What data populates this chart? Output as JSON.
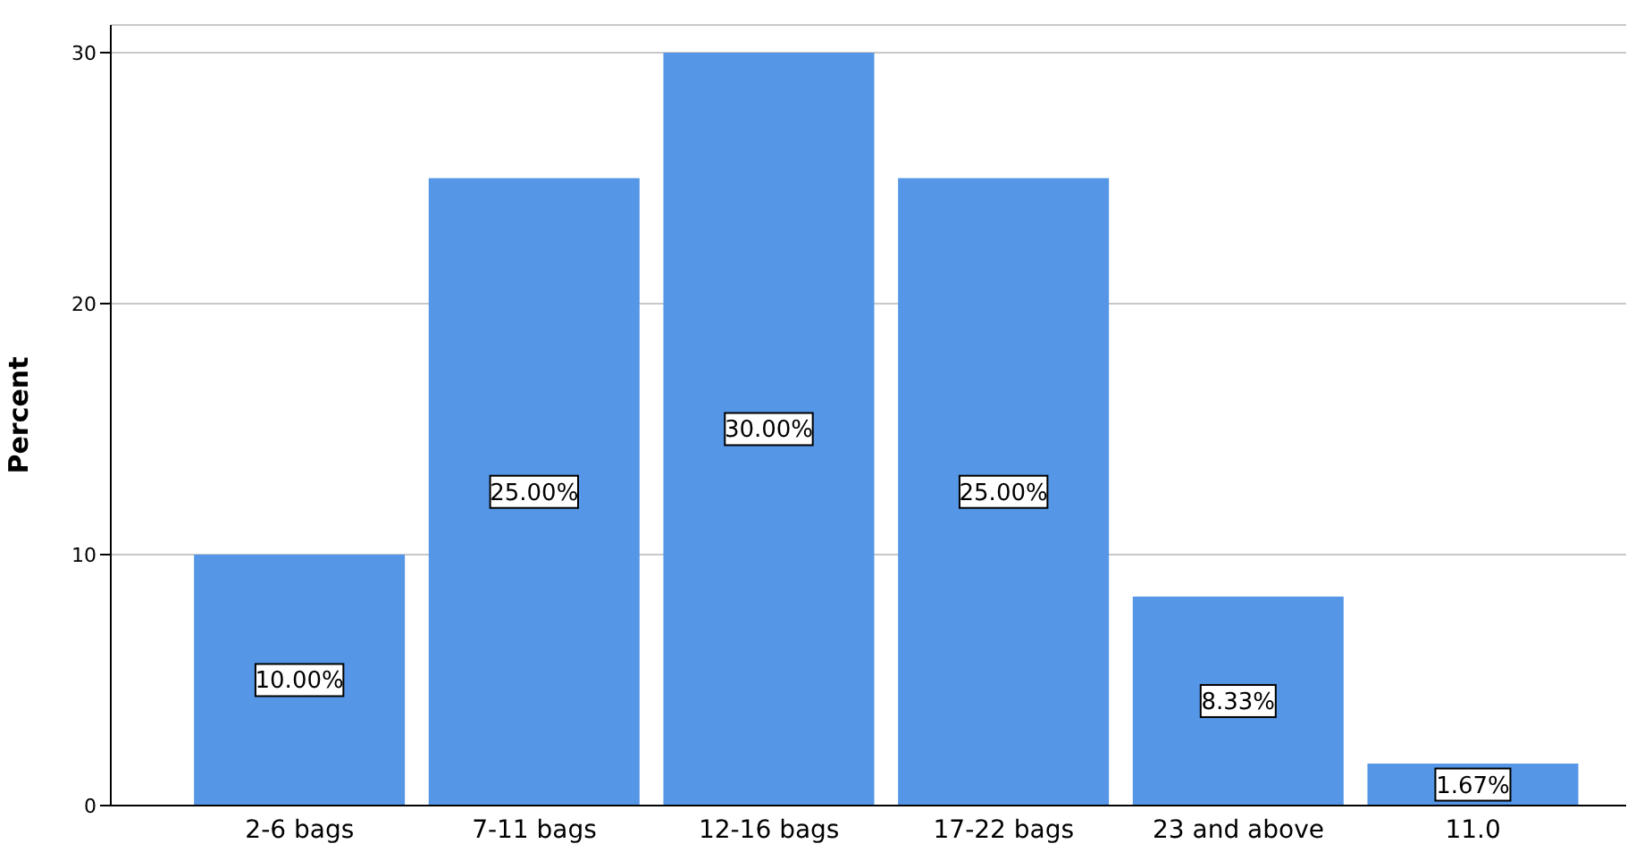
{
  "chart_data": {
    "type": "bar",
    "ylabel": "Percent",
    "categories": [
      "2-6 bags",
      "7-11 bags",
      "12-16 bags",
      "17-22 bags",
      "23 and above",
      "11.0"
    ],
    "values": [
      10,
      25,
      30,
      25,
      8.33,
      1.67
    ],
    "value_labels": [
      "10.00%",
      "25.00%",
      "30.00%",
      "25.00%",
      "8.33%",
      "1.67%"
    ],
    "color": "#5596e6",
    "ylim": [
      0,
      31.1
    ],
    "yticks": [
      0,
      10,
      20,
      30
    ],
    "grid": "y"
  }
}
